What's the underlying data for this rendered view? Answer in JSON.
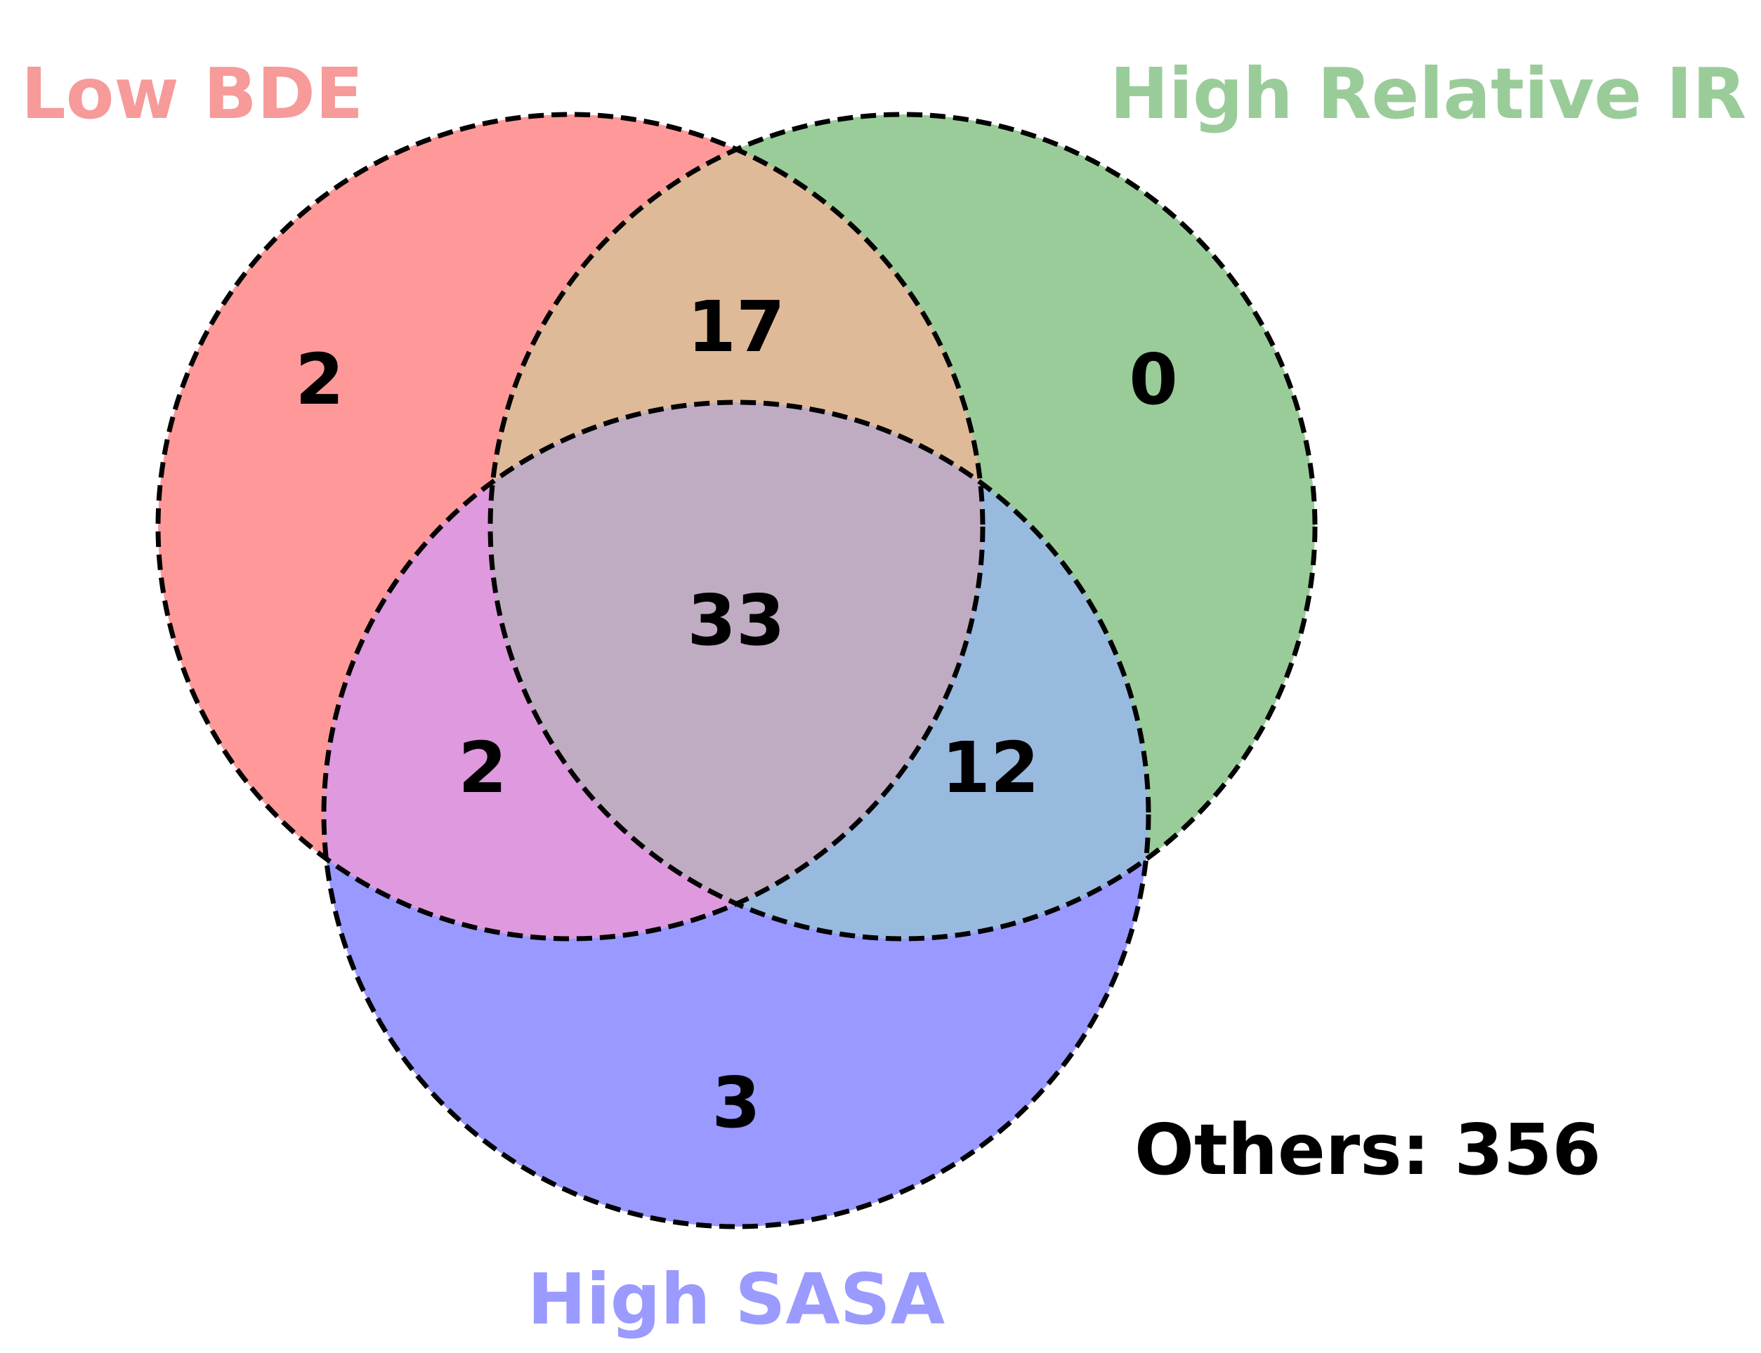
{
  "sets": {
    "a": {
      "label": "Low BDE",
      "color": "#ff0000",
      "label_color": "#f69a9a"
    },
    "b": {
      "label": "High Relative IR",
      "color": "#008000",
      "label_color": "#9acc9a"
    },
    "c": {
      "label": "High SASA",
      "color": "#0000ff",
      "label_color": "#9a9aff"
    }
  },
  "region_colors": {
    "a_only": "#ff9999",
    "b_only": "#99cc99",
    "c_only": "#9999ff",
    "ab": "#dfba99",
    "ac": "#df99df",
    "bc": "#99badf",
    "abc": "#bfacc2"
  },
  "counts": {
    "a_only": "2",
    "b_only": "0",
    "c_only": "3",
    "ab": "17",
    "ac": "2",
    "bc": "12",
    "abc": "33"
  },
  "others": "Others: 356",
  "outline": {
    "style": "dashed",
    "color": "#000000"
  }
}
